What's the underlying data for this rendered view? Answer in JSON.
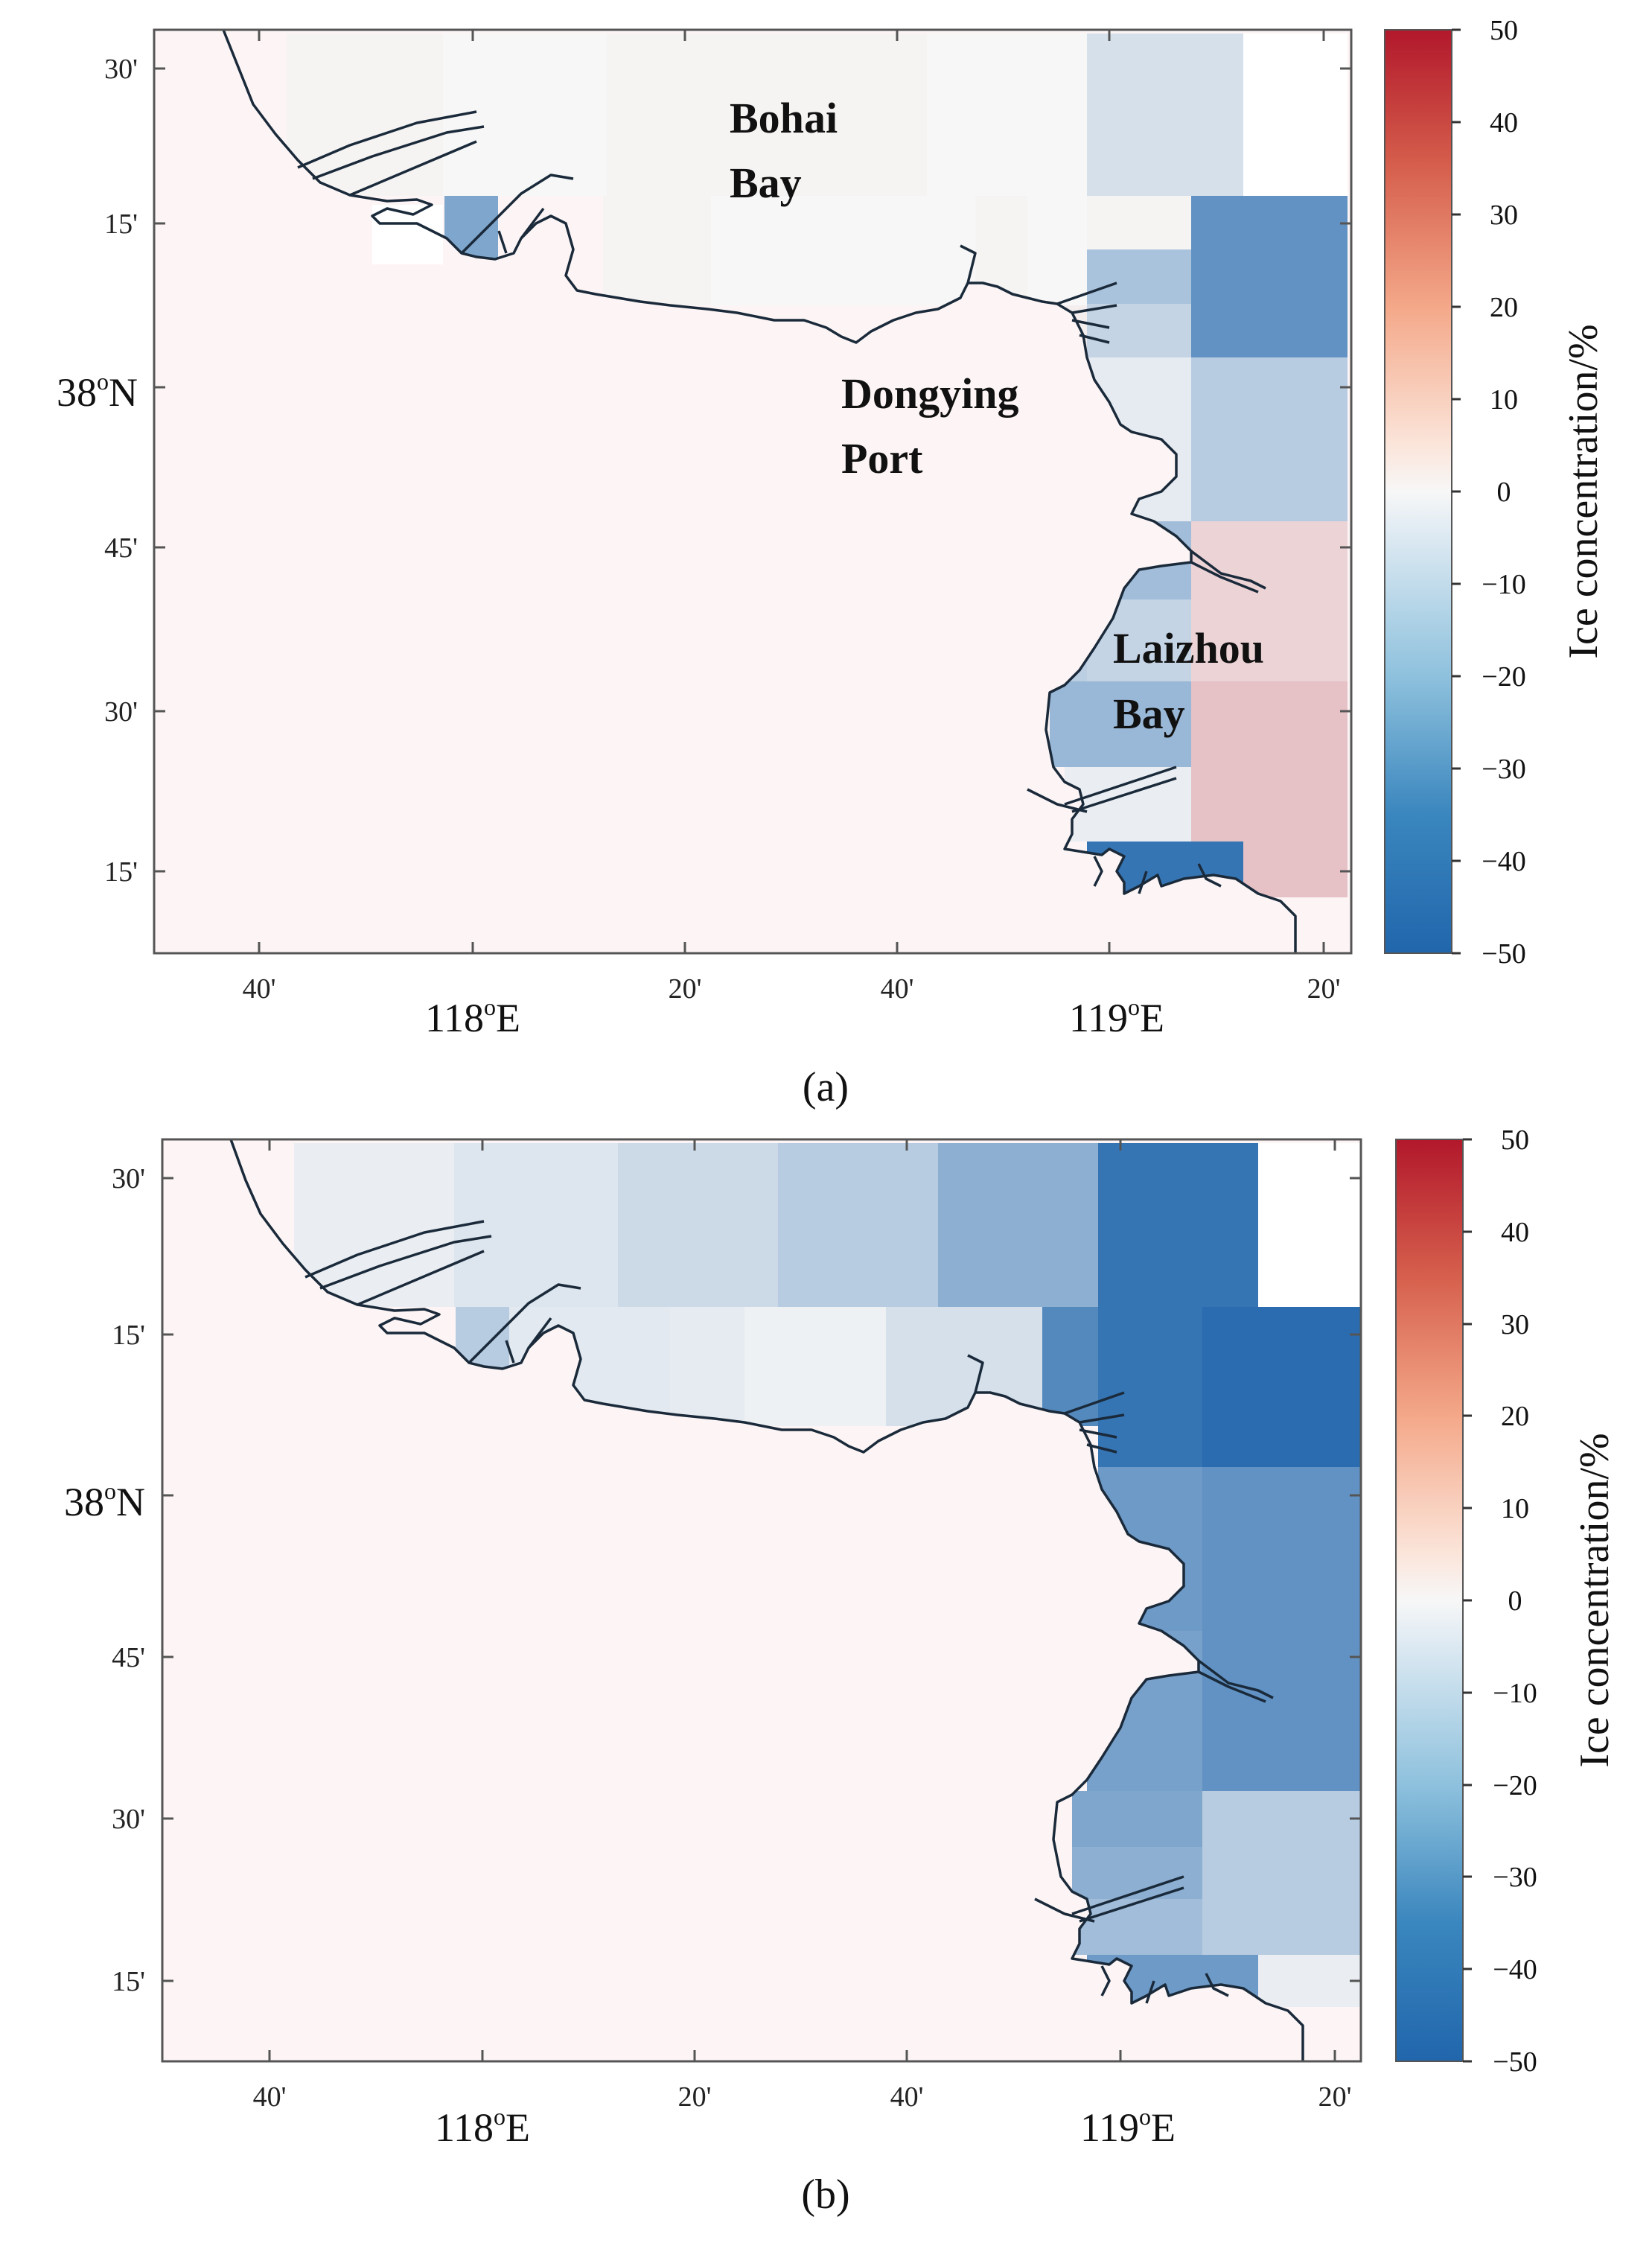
{
  "panels": [
    {
      "label": "(a)",
      "lat_ticks": [
        "30'",
        "15'",
        "38",
        "45'",
        "30'",
        "15'"
      ],
      "lon_ticks": [
        "40'",
        "118",
        "20'",
        "40'",
        "119",
        "20'"
      ],
      "degree_sup": "o",
      "lat_suffix": "N",
      "lon_suffix": "E",
      "places": {
        "bohai_1": "Bohai",
        "bohai_2": "Bay",
        "dongying_1": "Dongying",
        "dongying_2": "Port",
        "laizhou_1": "Laizhou",
        "laizhou_2": "Bay"
      },
      "colorbar": {
        "title": "Ice concentration/%",
        "ticks": [
          "50",
          "40",
          "30",
          "20",
          "10",
          "0",
          "−10",
          "−20",
          "−30",
          "−40",
          "−50"
        ]
      },
      "cell_values": [
        1,
        0,
        1,
        0,
        -8,
        1,
        -28,
        0,
        1,
        0,
        2,
        1,
        -18,
        -12,
        -35,
        -4,
        -15,
        -20,
        -12,
        -14,
        -22,
        8,
        12,
        -3,
        -45
      ]
    },
    {
      "label": "(b)",
      "lat_ticks": [
        "30'",
        "15'",
        "38",
        "45'",
        "30'",
        "15'"
      ],
      "lon_ticks": [
        "40'",
        "118",
        "20'",
        "40'",
        "119",
        "20'"
      ],
      "degree_sup": "o",
      "lat_suffix": "N",
      "lon_suffix": "E",
      "colorbar": {
        "title": "Ice concentration/%",
        "ticks": [
          "50",
          "40",
          "30",
          "20",
          "10",
          "0",
          "−10",
          "−20",
          "−30",
          "−40",
          "−50"
        ]
      },
      "cell_values": [
        -3,
        -6,
        -10,
        -15,
        -25,
        -45,
        -15,
        -5,
        -4,
        -2,
        -8,
        -38,
        -45,
        -48,
        -32,
        -35,
        -30,
        -35,
        -28,
        -25,
        -15,
        -20,
        -3,
        -32
      ]
    }
  ],
  "colors": {
    "land": "#fdf5f5",
    "coast": "#1a2a3a",
    "frame": "#555555",
    "cold": "#2166ac",
    "neutral": "#f7f7f7",
    "warm": "#b2182b"
  }
}
